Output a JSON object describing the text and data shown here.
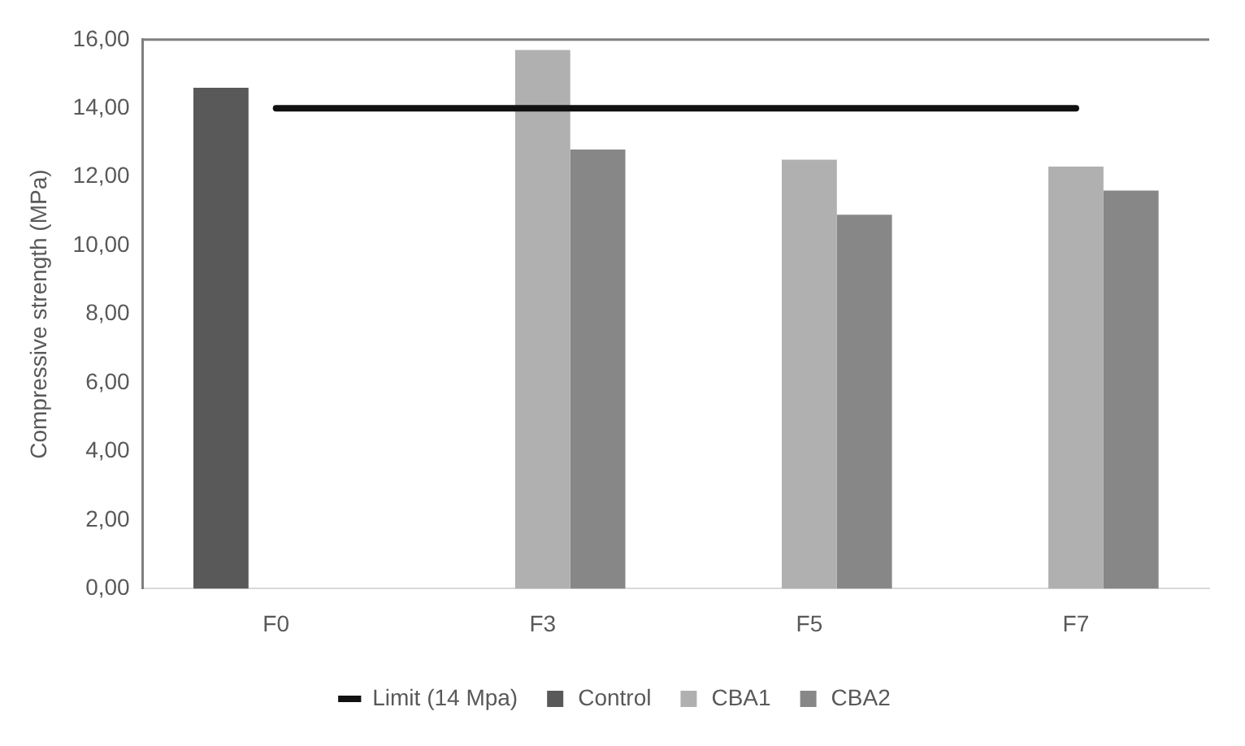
{
  "chart_data": {
    "type": "bar",
    "ylabel": "Compressive strength (MPa)",
    "categories": [
      "F0",
      "F3",
      "F5",
      "F7"
    ],
    "series": [
      {
        "name": "Control",
        "color": "#595959",
        "values": [
          14.6,
          null,
          null,
          null
        ]
      },
      {
        "name": "CBA1",
        "color": "#b0b0b0",
        "values": [
          null,
          15.7,
          12.5,
          12.3
        ]
      },
      {
        "name": "CBA2",
        "color": "#878787",
        "values": [
          null,
          12.8,
          10.9,
          11.6
        ]
      },
      {
        "name": "Limit (14 Mpa)",
        "type": "line",
        "color": "#111111",
        "values": [
          14,
          14,
          14,
          14
        ],
        "marker": "none",
        "line_style": "solid"
      }
    ],
    "ylim": [
      0,
      16
    ],
    "yticks": [
      {
        "value": 0,
        "label": "0,00"
      },
      {
        "value": 2,
        "label": "2,00"
      },
      {
        "value": 4,
        "label": "4,00"
      },
      {
        "value": 6,
        "label": "6,00"
      },
      {
        "value": 8,
        "label": "8,00"
      },
      {
        "value": 10,
        "label": "10,00"
      },
      {
        "value": 12,
        "label": "12,00"
      },
      {
        "value": 14,
        "label": "14,00"
      },
      {
        "value": 16,
        "label": "16,00"
      }
    ],
    "grid": false,
    "legend": "bottom"
  }
}
